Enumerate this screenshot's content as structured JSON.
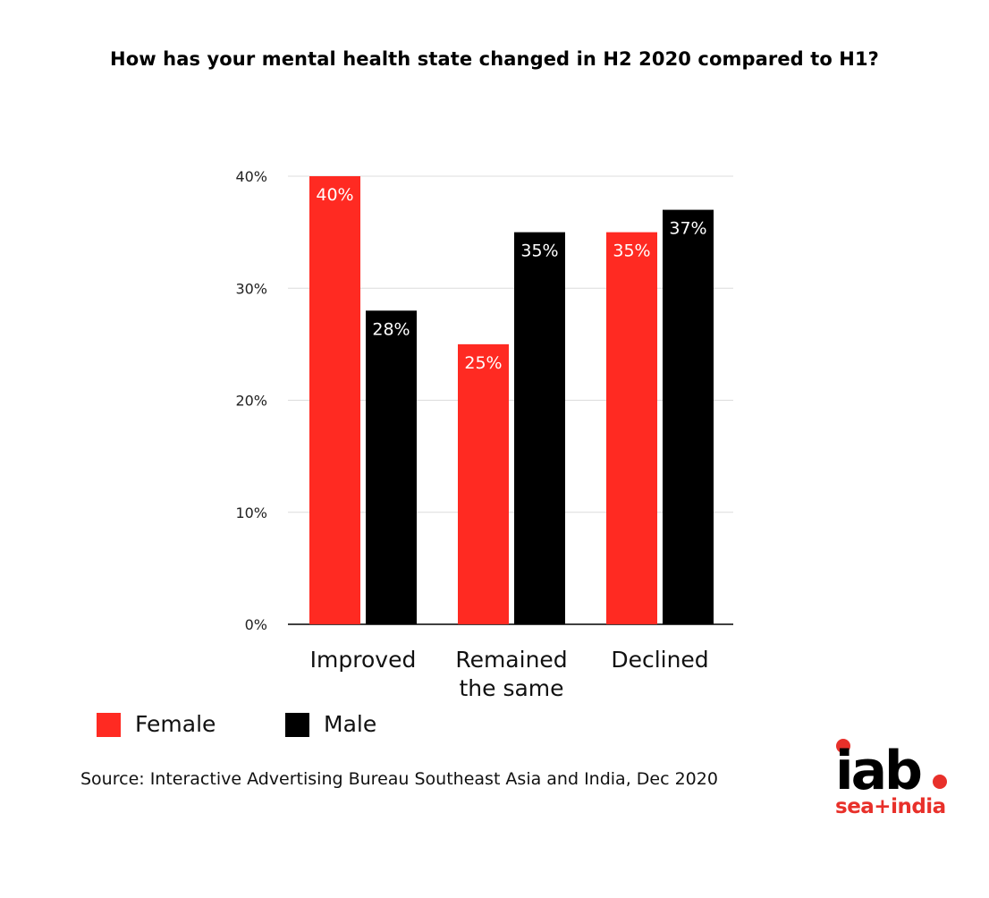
{
  "title": "How has your mental health state changed in H2 2020 compared to H1?",
  "chart_data": {
    "type": "bar",
    "categories": [
      "Improved",
      "Remained the same",
      "Declined"
    ],
    "category_lines": [
      [
        "Improved"
      ],
      [
        "Remained",
        "the same"
      ],
      [
        "Declined"
      ]
    ],
    "series": [
      {
        "name": "Female",
        "values": [
          40,
          25,
          35
        ],
        "labels": [
          "40%",
          "25%",
          "35%"
        ],
        "color": "#ff2a22"
      },
      {
        "name": "Male",
        "values": [
          28,
          35,
          37
        ],
        "labels": [
          "28%",
          "35%",
          "37%"
        ],
        "color": "#000000"
      }
    ],
    "ylim": [
      0,
      40
    ],
    "yticks": [
      0,
      10,
      20,
      30,
      40
    ],
    "ytick_labels": [
      "0%",
      "10%",
      "20%",
      "30%",
      "40%"
    ],
    "grid": true,
    "legend_position": "bottom-left"
  },
  "legend": {
    "female_label": "Female",
    "male_label": "Male"
  },
  "source": "Source: Interactive Advertising Bureau Southeast Asia and India, Dec 2020",
  "logo": {
    "main_text": "iab",
    "sub_text": "sea+india",
    "accent_color": "#e8302a"
  }
}
